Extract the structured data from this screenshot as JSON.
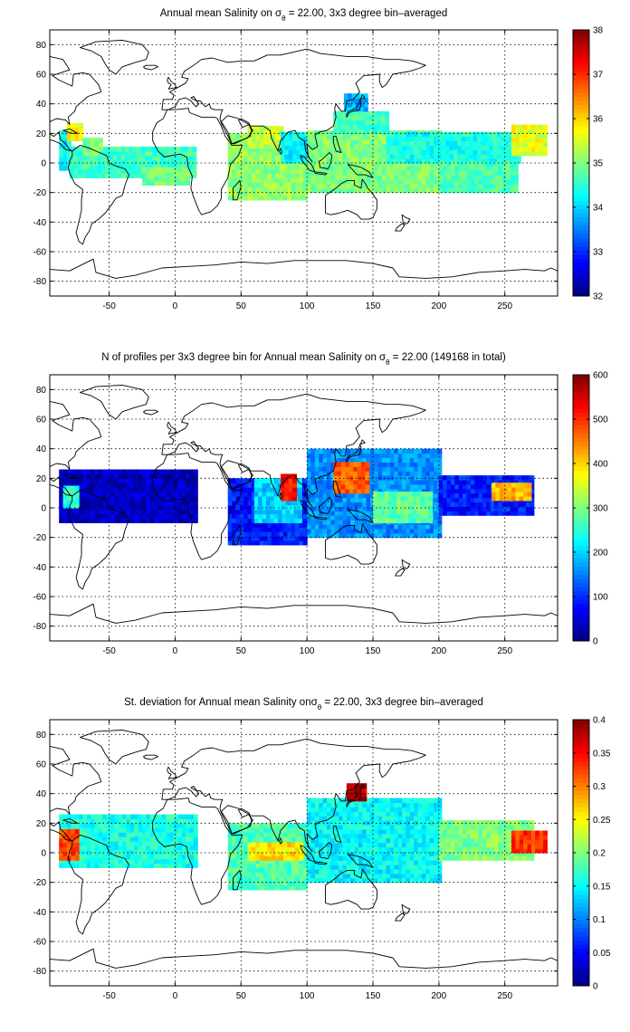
{
  "chart_data": [
    {
      "type": "heatmap",
      "title": "Annual mean Salinity on σθ = 22.00, 3x3 degree bin–averaged",
      "title_parts": {
        "pre": "Annual mean Salinity on ",
        "sym": "σ",
        "sub": "θ",
        "post": " = 22.00, 3x3 degree bin–averaged"
      },
      "xlim": [
        -95,
        290
      ],
      "ylim": [
        -90,
        90
      ],
      "xticks": [
        -50,
        0,
        50,
        100,
        150,
        200,
        250
      ],
      "yticks": [
        80,
        60,
        40,
        20,
        0,
        -20,
        -40,
        -60,
        -80
      ],
      "colorbar": {
        "min": 32,
        "max": 38,
        "ticks": [
          38,
          37,
          36,
          35,
          34,
          33,
          32
        ],
        "colormap": "jet"
      },
      "grid": true,
      "regions": [
        {
          "lon": [
            -88,
            -80
          ],
          "lat": [
            -5,
            20
          ],
          "value": 34.3
        },
        {
          "lon": [
            -82,
            -70
          ],
          "lat": [
            15,
            27
          ],
          "value": 35.8
        },
        {
          "lon": [
            -80,
            15
          ],
          "lat": [
            -10,
            10
          ],
          "value": 34.6
        },
        {
          "lon": [
            -70,
            -55
          ],
          "lat": [
            5,
            15
          ],
          "value": 35.0
        },
        {
          "lon": [
            -25,
            10
          ],
          "lat": [
            -15,
            -3
          ],
          "value": 34.9
        },
        {
          "lon": [
            40,
            100
          ],
          "lat": [
            -25,
            20
          ],
          "value": 35.1
        },
        {
          "lon": [
            55,
            80
          ],
          "lat": [
            10,
            25
          ],
          "value": 35.4
        },
        {
          "lon": [
            80,
            100
          ],
          "lat": [
            0,
            20
          ],
          "value": 34.2
        },
        {
          "lon": [
            100,
            200
          ],
          "lat": [
            -20,
            20
          ],
          "value": 35.0
        },
        {
          "lon": [
            120,
            160
          ],
          "lat": [
            20,
            35
          ],
          "value": 34.6
        },
        {
          "lon": [
            128,
            145
          ],
          "lat": [
            35,
            45
          ],
          "value": 33.8
        },
        {
          "lon": [
            160,
            260
          ],
          "lat": [
            0,
            20
          ],
          "value": 34.4
        },
        {
          "lon": [
            200,
            260
          ],
          "lat": [
            -20,
            0
          ],
          "value": 34.7
        },
        {
          "lon": [
            255,
            280
          ],
          "lat": [
            5,
            25
          ],
          "value": 35.6
        }
      ]
    },
    {
      "type": "heatmap",
      "title": "N of profiles per 3x3 degree bin for Annual mean Salinity on σθ = 22.00 (149168 in total)",
      "title_parts": {
        "pre": "N of profiles per 3x3 degree bin for Annual mean Salinity on ",
        "sym": "σ",
        "sub": "θ",
        "post": " = 22.00 (149168 in total)"
      },
      "xlim": [
        -95,
        290
      ],
      "ylim": [
        -90,
        90
      ],
      "xticks": [
        -50,
        0,
        50,
        100,
        150,
        200,
        250
      ],
      "yticks": [
        80,
        60,
        40,
        20,
        0,
        -20,
        -40,
        -60,
        -80
      ],
      "colorbar": {
        "min": 0,
        "max": 600,
        "ticks": [
          600,
          500,
          400,
          300,
          200,
          100,
          0
        ],
        "colormap": "jet"
      },
      "grid": true,
      "regions": [
        {
          "lon": [
            -88,
            15
          ],
          "lat": [
            -10,
            25
          ],
          "value": 40
        },
        {
          "lon": [
            -85,
            -75
          ],
          "lat": [
            0,
            15
          ],
          "value": 250
        },
        {
          "lon": [
            40,
            100
          ],
          "lat": [
            -25,
            20
          ],
          "value": 90
        },
        {
          "lon": [
            60,
            95
          ],
          "lat": [
            -10,
            20
          ],
          "value": 200
        },
        {
          "lon": [
            80,
            92
          ],
          "lat": [
            5,
            22
          ],
          "value": 520
        },
        {
          "lon": [
            100,
            200
          ],
          "lat": [
            -20,
            40
          ],
          "value": 160
        },
        {
          "lon": [
            120,
            145
          ],
          "lat": [
            10,
            30
          ],
          "value": 470
        },
        {
          "lon": [
            150,
            195
          ],
          "lat": [
            -10,
            10
          ],
          "value": 280
        },
        {
          "lon": [
            200,
            270
          ],
          "lat": [
            -5,
            20
          ],
          "value": 90
        },
        {
          "lon": [
            240,
            270
          ],
          "lat": [
            5,
            15
          ],
          "value": 420
        }
      ]
    },
    {
      "type": "heatmap",
      "title": "St. deviation for Annual mean Salinity on σθ = 22.00, 3x3 degree bin–averaged",
      "title_parts": {
        "pre": "St. deviation for Annual mean Salinity on",
        "sym": "σ",
        "sub": "θ",
        "post": " = 22.00, 3x3 degree bin–averaged"
      },
      "xlim": [
        -95,
        290
      ],
      "ylim": [
        -90,
        90
      ],
      "xticks": [
        -50,
        0,
        50,
        100,
        150,
        200,
        250
      ],
      "yticks": [
        80,
        60,
        40,
        20,
        0,
        -20,
        -40,
        -60,
        -80
      ],
      "colorbar": {
        "min": 0,
        "max": 0.4,
        "ticks": [
          0.4,
          0.35,
          0.3,
          0.25,
          0.2,
          0.15,
          0.1,
          0.05,
          0
        ],
        "colormap": "jet"
      },
      "grid": true,
      "regions": [
        {
          "lon": [
            -88,
            15
          ],
          "lat": [
            -10,
            25
          ],
          "value": 0.16
        },
        {
          "lon": [
            -88,
            -75
          ],
          "lat": [
            -5,
            15
          ],
          "value": 0.32
        },
        {
          "lon": [
            40,
            100
          ],
          "lat": [
            -25,
            20
          ],
          "value": 0.18
        },
        {
          "lon": [
            55,
            95
          ],
          "lat": [
            -5,
            5
          ],
          "value": 0.26
        },
        {
          "lon": [
            100,
            200
          ],
          "lat": [
            -20,
            35
          ],
          "value": 0.15
        },
        {
          "lon": [
            130,
            145
          ],
          "lat": [
            35,
            45
          ],
          "value": 0.38
        },
        {
          "lon": [
            200,
            270
          ],
          "lat": [
            -5,
            20
          ],
          "value": 0.2
        },
        {
          "lon": [
            255,
            280
          ],
          "lat": [
            0,
            15
          ],
          "value": 0.33
        }
      ]
    }
  ]
}
